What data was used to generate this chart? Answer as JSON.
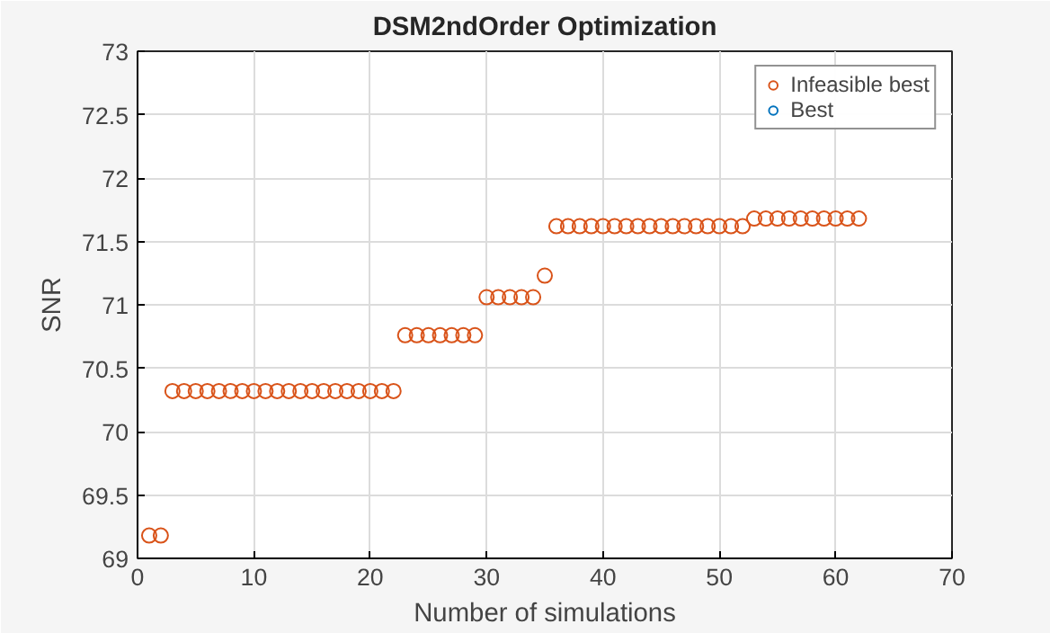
{
  "chart_data": {
    "type": "scatter",
    "title": "DSM2ndOrder Optimization",
    "xlabel": "Number of simulations",
    "ylabel": "SNR",
    "x": [
      1,
      2,
      3,
      4,
      5,
      6,
      7,
      8,
      9,
      10,
      11,
      12,
      13,
      14,
      15,
      16,
      17,
      18,
      19,
      20,
      21,
      22,
      23,
      24,
      25,
      26,
      27,
      28,
      29,
      30,
      31,
      32,
      33,
      34,
      35,
      36,
      37,
      38,
      39,
      40,
      41,
      42,
      43,
      44,
      45,
      46,
      47,
      48,
      49,
      50,
      51,
      52,
      53,
      54,
      55,
      56,
      57,
      58,
      59,
      60,
      61,
      62
    ],
    "series": [
      {
        "name": "Infeasible best",
        "color": "#d95319",
        "values": [
          69.18,
          69.18,
          70.32,
          70.32,
          70.32,
          70.32,
          70.32,
          70.32,
          70.32,
          70.32,
          70.32,
          70.32,
          70.32,
          70.32,
          70.32,
          70.32,
          70.32,
          70.32,
          70.32,
          70.32,
          70.32,
          70.32,
          70.76,
          70.76,
          70.76,
          70.76,
          70.76,
          70.76,
          70.76,
          71.06,
          71.06,
          71.06,
          71.06,
          71.06,
          71.23,
          71.62,
          71.62,
          71.62,
          71.62,
          71.62,
          71.62,
          71.62,
          71.62,
          71.62,
          71.62,
          71.62,
          71.62,
          71.62,
          71.62,
          71.62,
          71.62,
          71.62,
          71.68,
          71.68,
          71.68,
          71.68,
          71.68,
          71.68,
          71.68,
          71.68,
          71.68,
          71.68
        ]
      },
      {
        "name": "Best",
        "color": "#0072bd",
        "values": [
          null,
          null,
          null,
          null,
          null,
          null,
          null,
          null,
          null,
          null,
          null,
          null,
          null,
          null,
          null,
          null,
          null,
          null,
          null,
          null,
          null,
          null,
          null,
          null,
          null,
          null,
          null,
          null,
          null,
          null,
          null,
          null,
          null,
          null,
          null,
          null,
          null,
          null,
          null,
          null,
          null,
          null,
          null,
          null,
          null,
          null,
          null,
          null,
          null,
          null,
          null,
          null,
          null,
          null,
          null,
          null,
          null,
          null,
          null,
          null,
          null,
          null
        ]
      }
    ],
    "xlim": [
      0,
      70
    ],
    "xticks": [
      0,
      10,
      20,
      30,
      40,
      50,
      60,
      70
    ],
    "ylim": [
      69,
      73
    ],
    "yticks": [
      69,
      69.5,
      70,
      70.5,
      71,
      71.5,
      72,
      72.5,
      73
    ],
    "grid": true,
    "legend": "top right",
    "marker": "circle"
  }
}
